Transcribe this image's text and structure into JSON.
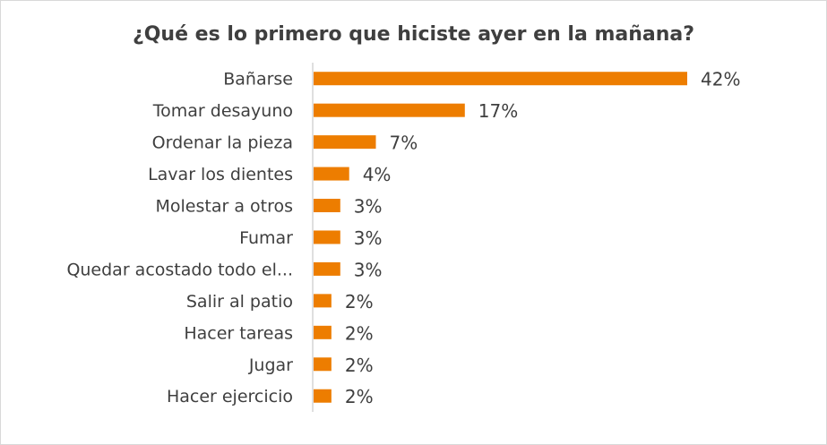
{
  "chart_data": {
    "type": "bar",
    "orientation": "horizontal",
    "title": "¿Qué es lo primero que hiciste ayer en la mañana?",
    "categories": [
      "Bañarse",
      "Tomar desayuno",
      "Ordenar la pieza",
      "Lavar los dientes",
      "Molestar a otros",
      "Fumar",
      "Quedar acostado todo el...",
      "Salir al patio",
      "Hacer tareas",
      "Jugar",
      "Hacer ejercicio"
    ],
    "values": [
      42,
      17,
      7,
      4,
      3,
      3,
      3,
      2,
      2,
      2,
      2
    ],
    "value_labels": [
      "42%",
      "17%",
      "7%",
      "4%",
      "3%",
      "3%",
      "3%",
      "2%",
      "2%",
      "2%",
      "2%"
    ],
    "xlim": [
      0,
      45
    ],
    "grid": false,
    "legend": "none",
    "bar_color": "#ed7d00"
  }
}
